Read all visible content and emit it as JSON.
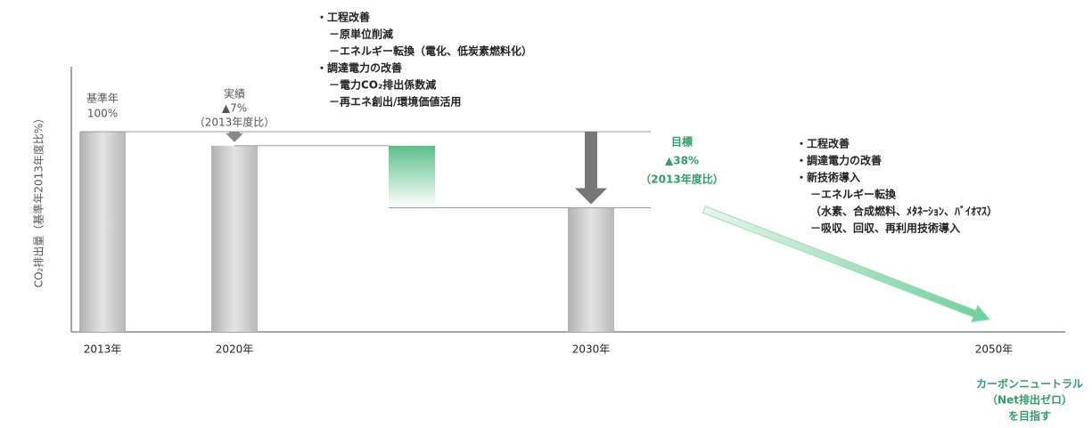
{
  "chart_data": {
    "type": "waterfall",
    "y_label": "CO₂排出量（基準年2013年度比%）",
    "categories": [
      "2013年",
      "2020年",
      null,
      "2030年",
      "2050年"
    ],
    "values": [
      100,
      93,
      -31,
      62,
      0
    ],
    "kinds": [
      "total",
      "total",
      "delta",
      "total",
      "target"
    ],
    "ylim": [
      0,
      100
    ],
    "colors": {
      "total": "#c8c8c8",
      "delta": "#5cbf8a",
      "target": "#6ccf9a"
    },
    "annotations": {
      "base": [
        "基準年",
        "100%"
      ],
      "actual": [
        "実績",
        "▲7%",
        "（2013年度比）"
      ],
      "measures_2030": [
        "・工程改善",
        "－原単位削減",
        "－エネルギー転換（電化、低炭素燃料化）",
        "・調達電力の改善",
        "－電力CO₂排出係数減",
        "－再エネ創出/環境価値活用"
      ],
      "target": [
        "目標",
        "▲38%",
        "（2013年度比）"
      ],
      "measures_2050": [
        "・工程改善",
        "・調達電力の改善",
        "・新技術導入",
        "－エネルギー転換",
        "（水素、合成燃料、ﾒﾀﾈｰｼｮﾝ、ﾊﾞｲｵﾏｽ）",
        "－吸収、回収、再利用技術導入"
      ],
      "goal": [
        "カーボンニュートラル",
        "（Net排出ゼロ）",
        "を目指す"
      ]
    }
  }
}
